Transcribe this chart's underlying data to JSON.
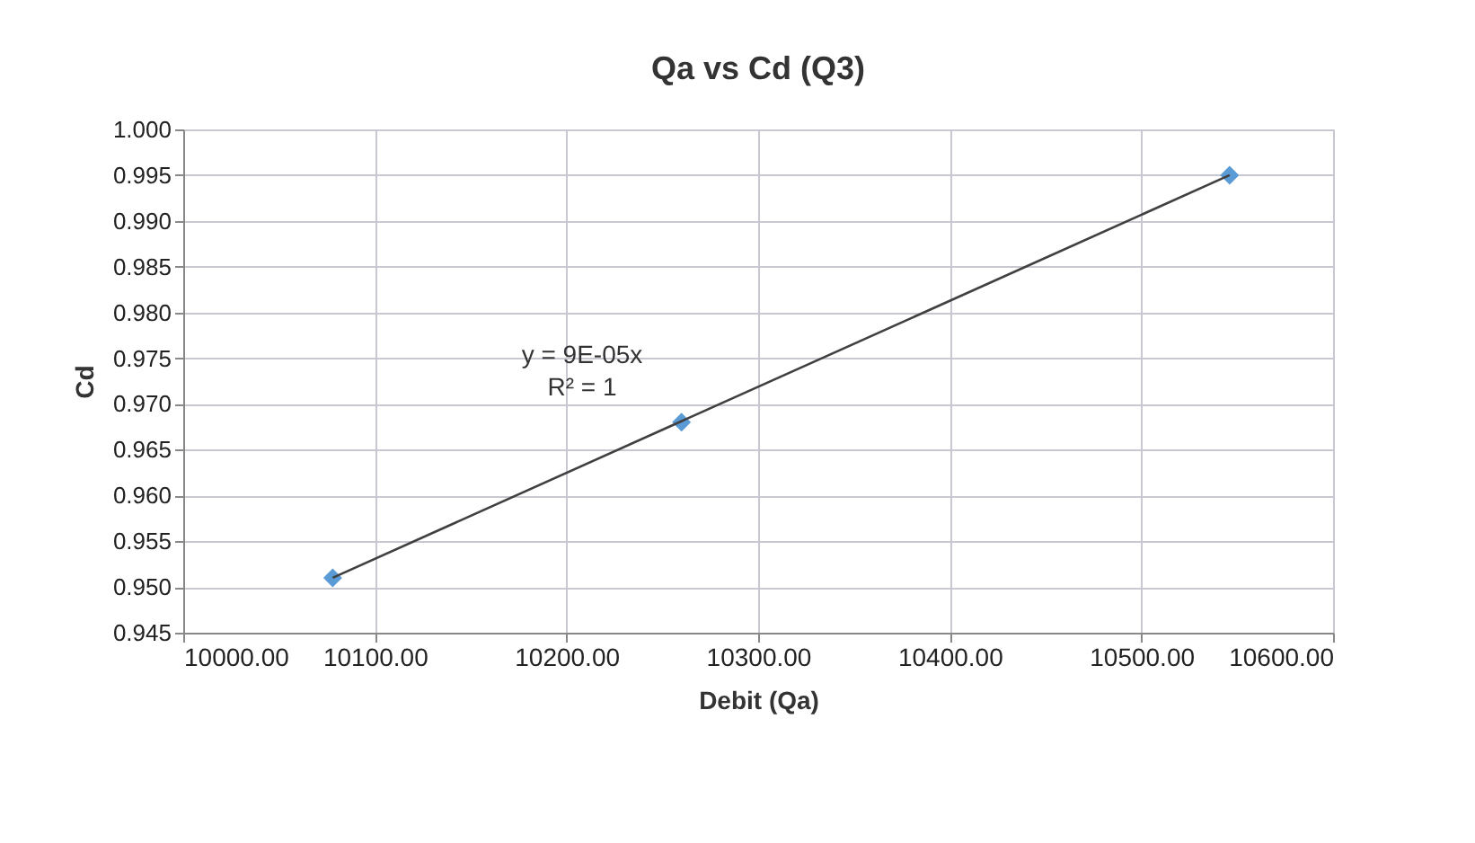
{
  "chart_data": {
    "type": "scatter",
    "title": "Qa vs Cd (Q3)",
    "xlabel": "Debit (Qa)",
    "ylabel": "Cd",
    "series": [
      {
        "type": "scatter",
        "color": "#5b9bd5",
        "x": [
          10078,
          10260,
          10546
        ],
        "values": [
          0.951,
          0.968,
          0.995
        ],
        "marker": "diamond"
      },
      {
        "type": "line",
        "color": "#404040",
        "x": [
          10078,
          10546
        ],
        "values": [
          0.951,
          0.995
        ],
        "line_style": "solid"
      }
    ],
    "xlim": [
      10000,
      10600
    ],
    "xticks": [
      {
        "value": 10000,
        "label": "10000.00"
      },
      {
        "value": 10100,
        "label": "10100.00"
      },
      {
        "value": 10200,
        "label": "10200.00"
      },
      {
        "value": 10300,
        "label": "10300.00"
      },
      {
        "value": 10400,
        "label": "10400.00"
      },
      {
        "value": 10500,
        "label": "10500.00"
      },
      {
        "value": 10600,
        "label": "10600.00"
      }
    ],
    "ylim": [
      0.945,
      1.0
    ],
    "yticks": [
      {
        "value": 0.945,
        "label": "0.945"
      },
      {
        "value": 0.95,
        "label": "0.950"
      },
      {
        "value": 0.955,
        "label": "0.955"
      },
      {
        "value": 0.96,
        "label": "0.960"
      },
      {
        "value": 0.965,
        "label": "0.965"
      },
      {
        "value": 0.97,
        "label": "0.970"
      },
      {
        "value": 0.975,
        "label": "0.975"
      },
      {
        "value": 0.98,
        "label": "0.980"
      },
      {
        "value": 0.985,
        "label": "0.985"
      },
      {
        "value": 0.99,
        "label": "0.990"
      },
      {
        "value": 0.995,
        "label": "0.995"
      },
      {
        "value": 1.0,
        "label": "1.000"
      }
    ],
    "grid": true,
    "annotations": [
      "y = 9E-05x",
      "R² = 1"
    ]
  }
}
